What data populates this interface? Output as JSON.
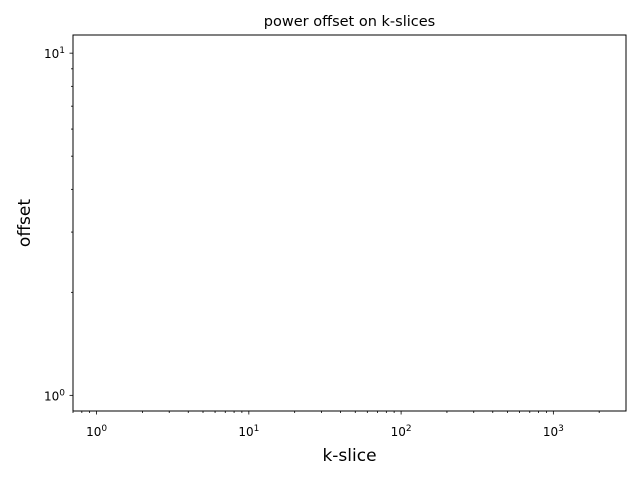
{
  "chart_data": {
    "type": "line",
    "title": "power offset on k-slices",
    "xlabel": "k-slice",
    "ylabel": "offset",
    "xscale": "log",
    "yscale": "log",
    "xlim": [
      0.7,
      3000
    ],
    "ylim": [
      0.9,
      11.3
    ],
    "xticks": [
      {
        "base": "10",
        "exp": "0",
        "value": 1
      },
      {
        "base": "10",
        "exp": "1",
        "value": 10
      },
      {
        "base": "10",
        "exp": "2",
        "value": 100
      },
      {
        "base": "10",
        "exp": "3",
        "value": 1000
      }
    ],
    "yticks": [
      {
        "base": "10",
        "exp": "0",
        "value": 1
      },
      {
        "base": "10",
        "exp": "1",
        "value": 10
      }
    ],
    "grid": false,
    "series": []
  }
}
